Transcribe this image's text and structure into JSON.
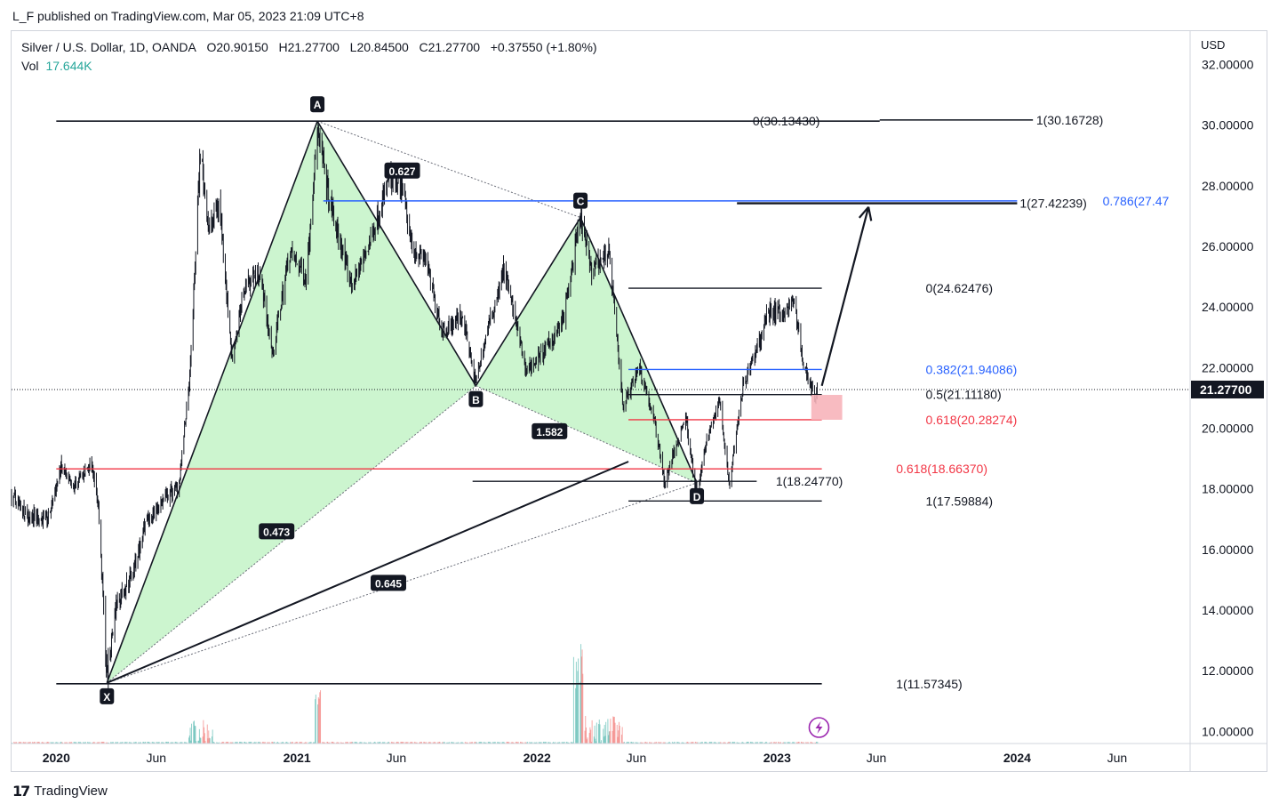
{
  "header": {
    "published": "L_F published on TradingView.com, Mar 05, 2023 21:09 UTC+8"
  },
  "legend": {
    "symbol": "Silver / U.S. Dollar, 1D, OANDA",
    "open": "O20.90150",
    "high": "H21.27700",
    "low": "L20.84500",
    "close": "C21.27700",
    "change": "+0.37550 (+1.80%)",
    "vol_label": "Vol",
    "vol_value": "17.644K"
  },
  "footer": {
    "brand": "TradingView"
  },
  "colors": {
    "candle": "#131722",
    "harmonic_fill": "#ccf5cf",
    "blue_level": "#2962ff",
    "red_level": "#f23645",
    "vol_up": "#26a69a",
    "vol_down": "#ef5350",
    "target_box": "#f7b4ba",
    "lightning": "#9c27b0"
  },
  "chart_data": {
    "type": "candlestick",
    "currency_label": "USD",
    "current_price": "21.27700",
    "y_ticks": [
      "32.00000",
      "30.00000",
      "28.00000",
      "26.00000",
      "24.00000",
      "22.00000",
      "20.00000",
      "18.00000",
      "16.00000",
      "14.00000",
      "12.00000",
      "10.00000"
    ],
    "y_tick_values": [
      32,
      30,
      28,
      26,
      24,
      22,
      20,
      18,
      16,
      14,
      12,
      10
    ],
    "ylim": [
      9.6,
      33.1
    ],
    "x_ticks": [
      {
        "label": "2020",
        "date": "2020-01-01",
        "bold": true
      },
      {
        "label": "Jun",
        "date": "2020-06-01",
        "bold": false
      },
      {
        "label": "2021",
        "date": "2021-01-01",
        "bold": true
      },
      {
        "label": "Jun",
        "date": "2021-06-01",
        "bold": false
      },
      {
        "label": "2022",
        "date": "2022-01-01",
        "bold": true
      },
      {
        "label": "Jun",
        "date": "2022-06-01",
        "bold": false
      },
      {
        "label": "2023",
        "date": "2023-01-01",
        "bold": true
      },
      {
        "label": "Jun",
        "date": "2023-06-01",
        "bold": false
      },
      {
        "label": "2024",
        "date": "2024-01-01",
        "bold": true
      },
      {
        "label": "Jun",
        "date": "2024-06-01",
        "bold": false
      }
    ],
    "xlim": [
      "2019-10-25",
      "2024-09-20"
    ],
    "price_path": [
      [
        "2019-10-25",
        17.8
      ],
      [
        "2019-11-20",
        17.1
      ],
      [
        "2019-12-20",
        17.0
      ],
      [
        "2020-01-08",
        18.7
      ],
      [
        "2020-01-25",
        18.0
      ],
      [
        "2020-02-15",
        18.6
      ],
      [
        "2020-02-24",
        18.9
      ],
      [
        "2020-03-05",
        17.4
      ],
      [
        "2020-03-18",
        11.8
      ],
      [
        "2020-04-01",
        14.2
      ],
      [
        "2020-04-25",
        15.2
      ],
      [
        "2020-05-20",
        17.0
      ],
      [
        "2020-06-15",
        17.7
      ],
      [
        "2020-07-05",
        18.1
      ],
      [
        "2020-07-22",
        21.6
      ],
      [
        "2020-08-07",
        29.2
      ],
      [
        "2020-08-20",
        26.5
      ],
      [
        "2020-09-05",
        27.5
      ],
      [
        "2020-09-24",
        22.3
      ],
      [
        "2020-10-15",
        24.8
      ],
      [
        "2020-11-05",
        25.2
      ],
      [
        "2020-11-25",
        22.4
      ],
      [
        "2020-12-20",
        25.8
      ],
      [
        "2021-01-15",
        25.0
      ],
      [
        "2021-02-01",
        29.8
      ],
      [
        "2021-02-20",
        27.4
      ],
      [
        "2021-03-25",
        24.7
      ],
      [
        "2021-04-20",
        26.0
      ],
      [
        "2021-05-20",
        28.2
      ],
      [
        "2021-06-10",
        27.9
      ],
      [
        "2021-06-25",
        26.0
      ],
      [
        "2021-07-15",
        25.6
      ],
      [
        "2021-08-10",
        23.2
      ],
      [
        "2021-09-10",
        23.7
      ],
      [
        "2021-09-29",
        21.5
      ],
      [
        "2021-10-15",
        23.0
      ],
      [
        "2021-11-12",
        25.3
      ],
      [
        "2021-12-15",
        21.9
      ],
      [
        "2022-01-15",
        22.6
      ],
      [
        "2022-02-10",
        23.6
      ],
      [
        "2022-03-08",
        26.9
      ],
      [
        "2022-03-25",
        25.2
      ],
      [
        "2022-04-20",
        25.9
      ],
      [
        "2022-05-12",
        20.7
      ],
      [
        "2022-06-05",
        22.1
      ],
      [
        "2022-06-30",
        20.1
      ],
      [
        "2022-07-14",
        18.2
      ],
      [
        "2022-08-15",
        20.4
      ],
      [
        "2022-09-01",
        17.7
      ],
      [
        "2022-09-15",
        19.5
      ],
      [
        "2022-10-05",
        21.0
      ],
      [
        "2022-10-20",
        18.2
      ],
      [
        "2022-11-10",
        21.4
      ],
      [
        "2022-11-30",
        22.5
      ],
      [
        "2022-12-20",
        23.9
      ],
      [
        "2023-01-10",
        23.8
      ],
      [
        "2023-01-27",
        24.2
      ],
      [
        "2023-02-08",
        22.3
      ],
      [
        "2023-02-28",
        20.9
      ],
      [
        "2023-03-03",
        21.28
      ]
    ],
    "harmonic_points": [
      {
        "label": "X",
        "date": "2020-03-18",
        "price": 11.6
      },
      {
        "label": "A",
        "date": "2021-02-01",
        "price": 30.13
      },
      {
        "label": "B",
        "date": "2021-09-30",
        "price": 21.4
      },
      {
        "label": "C",
        "date": "2022-03-08",
        "price": 26.95
      },
      {
        "label": "D",
        "date": "2022-09-01",
        "price": 18.2
      }
    ],
    "ratio_labels": [
      {
        "text": "0.627",
        "date": "2021-06-10",
        "price": 28.5
      },
      {
        "text": "0.473",
        "date": "2020-12-01",
        "price": 16.6
      },
      {
        "text": "1.582",
        "date": "2022-01-20",
        "price": 19.9
      },
      {
        "text": "0.645",
        "date": "2021-05-20",
        "price": 14.9
      }
    ],
    "levels": [
      {
        "label": "0(30.13430)",
        "start": "2020-01-01",
        "end": "2023-06-06",
        "price": 30.13,
        "color": "#131722",
        "width": 1.6,
        "label_date": "2022-11-25",
        "underline": true
      },
      {
        "label": "1(30.16728)",
        "start": "2023-06-06",
        "end": "2024-01-25",
        "price": 30.17,
        "color": "#131722",
        "width": 1.6,
        "label_date": "2024-01-30"
      },
      {
        "label": "1(27.42239)",
        "start": "2022-11-01",
        "end": "2024-01-01",
        "price": 27.42,
        "color": "#131722",
        "width": 2.4,
        "label_date": "2024-01-05",
        "underline": true
      },
      {
        "label": "0.786(27.47",
        "start": "2021-02-10",
        "end": "2024-01-01",
        "price": 27.5,
        "color": "#2962ff",
        "width": 1.4,
        "label_date": "2024-05-10"
      },
      {
        "label": "0(24.62476)",
        "start": "2022-05-20",
        "end": "2023-03-10",
        "price": 24.62,
        "color": "#131722",
        "width": 1.4,
        "label_date": "2023-08-15"
      },
      {
        "label": "0.382(21.94086)",
        "start": "2022-05-20",
        "end": "2023-03-10",
        "price": 21.94,
        "color": "#2962ff",
        "width": 1.4,
        "label_date": "2023-08-15"
      },
      {
        "label": "0.5(21.11180)",
        "start": "2022-05-20",
        "end": "2023-03-10",
        "price": 21.11,
        "color": "#131722",
        "width": 1.4,
        "label_date": "2023-08-15"
      },
      {
        "label": "0.618(20.28274)",
        "start": "2022-05-20",
        "end": "2023-03-10",
        "price": 20.28,
        "color": "#f23645",
        "width": 1.4,
        "label_date": "2023-08-15"
      },
      {
        "label": "0.618(18.66370)",
        "start": "2020-01-01",
        "end": "2023-03-10",
        "price": 18.66,
        "color": "#f23645",
        "width": 1.4,
        "label_date": "2023-07-01"
      },
      {
        "label": "1(18.24770)",
        "start": "2021-09-25",
        "end": "2022-12-01",
        "price": 18.25,
        "color": "#131722",
        "width": 1.4,
        "label_date": "2022-12-30"
      },
      {
        "label": "1(17.59884)",
        "start": "2022-05-20",
        "end": "2023-03-10",
        "price": 17.6,
        "color": "#131722",
        "width": 1.4,
        "label_date": "2023-08-15"
      },
      {
        "label": "1(11.57345)",
        "start": "2020-01-01",
        "end": "2023-03-10",
        "price": 11.57,
        "color": "#131722",
        "width": 1.6,
        "label_date": "2023-07-01"
      }
    ]
  }
}
